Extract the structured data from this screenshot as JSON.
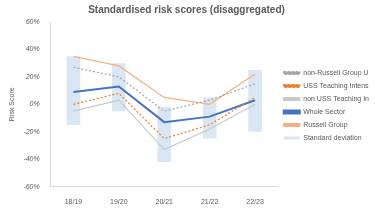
{
  "chart_data": {
    "type": "line",
    "title": "Standardised risk scores (disaggregated)",
    "y_label": "Risk Score",
    "categories": [
      "18/19",
      "19/20",
      "20/21",
      "21/22",
      "22/23"
    ],
    "series": [
      {
        "name": "Standard deviation",
        "type": "bar",
        "color": "#dbe6f4",
        "values": [
          [
            -15,
            35
          ],
          [
            -5,
            30
          ],
          [
            -42,
            -2
          ],
          [
            -25,
            5
          ],
          [
            -20,
            25
          ]
        ]
      },
      {
        "name": "non-Russell Group USS",
        "type": "line",
        "color": "#a5a5a5",
        "line_style": "dotted",
        "values": [
          27,
          20,
          -5,
          3,
          15
        ]
      },
      {
        "name": "USS Teaching Intensives",
        "type": "line",
        "color": "#ed7d31",
        "line_style": "dotted",
        "values": [
          0,
          8,
          -25,
          -15,
          5
        ]
      },
      {
        "name": "non USS Teaching Intensives",
        "type": "line",
        "color": "#c9c9c9",
        "line_style": "solid",
        "values": [
          -5,
          3,
          -33,
          -18,
          0
        ]
      },
      {
        "name": "Whole Sector",
        "type": "line",
        "color": "#4472c4",
        "line_style": "solid",
        "values": [
          9,
          13,
          -13,
          -9,
          3
        ]
      },
      {
        "name": "Russell Group",
        "type": "line",
        "color": "#f4b183",
        "line_style": "solid",
        "values": [
          35,
          28,
          5,
          0,
          22
        ]
      }
    ],
    "ylim": [
      -60,
      60
    ],
    "yticks": [
      {
        "value": -60,
        "label": "-60%"
      },
      {
        "value": -40,
        "label": "-40%"
      },
      {
        "value": -20,
        "label": "-20%"
      },
      {
        "value": 0,
        "label": "0%"
      },
      {
        "value": 20,
        "label": "20%"
      },
      {
        "value": 40,
        "label": "40%"
      },
      {
        "value": 60,
        "label": "60%"
      }
    ],
    "grid": false,
    "legend": "right"
  }
}
